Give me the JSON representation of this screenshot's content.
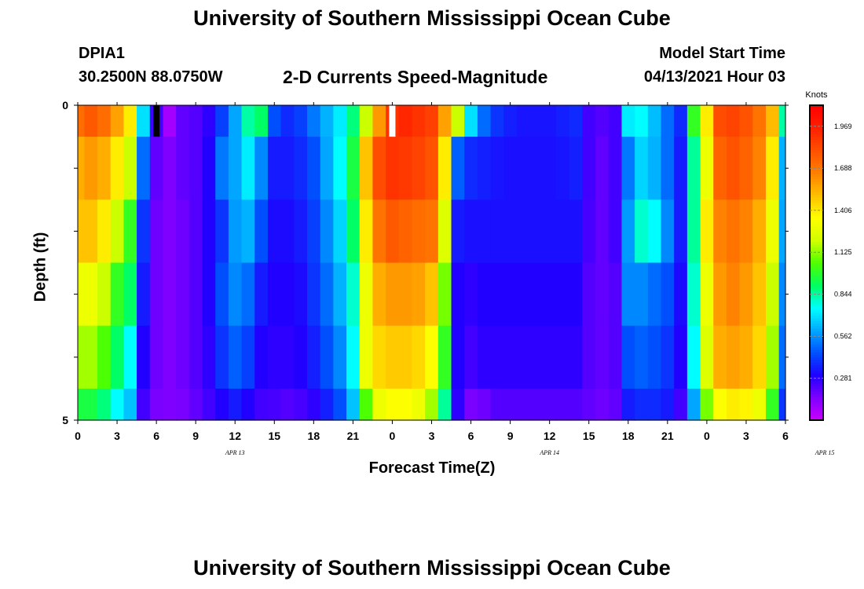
{
  "header": {
    "title": "University of Southern Mississippi Ocean Cube",
    "station": "DPIA1",
    "coords": "30.2500N  88.0750W",
    "subtitle": "2-D Currents Speed-Magnitude",
    "model_start_label": "Model Start Time",
    "model_start_value": "04/13/2021 Hour 03"
  },
  "footer": {
    "title": "University of Southern Mississippi Ocean Cube"
  },
  "chart_data": {
    "type": "heatmap",
    "title": "2-D Currents Speed-Magnitude",
    "xlabel": "Forecast Time(Z)",
    "ylabel": "Depth (ft)",
    "x_tick_labels": [
      "0",
      "3",
      "6",
      "9",
      "12",
      "15",
      "18",
      "21",
      "0",
      "3",
      "6",
      "9",
      "12",
      "15",
      "18",
      "21",
      "0",
      "3",
      "6"
    ],
    "date_labels": [
      {
        "label": "APR  13",
        "hour": 12
      },
      {
        "label": "APR  14",
        "hour": 36
      },
      {
        "label": "APR  15",
        "hour": 57
      }
    ],
    "x_range_hours": [
      0,
      54
    ],
    "y_range_ft": [
      0,
      5
    ],
    "y_tick_labels": [
      "0",
      "5"
    ],
    "depth_layers_ft": [
      0,
      1,
      2,
      3,
      4,
      5
    ],
    "hours": [
      0,
      1,
      2,
      3,
      4,
      5,
      6,
      7,
      8,
      9,
      10,
      11,
      12,
      13,
      14,
      15,
      16,
      17,
      18,
      19,
      20,
      21,
      22,
      23,
      24,
      25,
      26,
      27,
      28,
      29,
      30,
      31,
      32,
      33,
      34,
      35,
      36,
      37,
      38,
      39,
      40,
      41,
      42,
      43,
      44,
      45,
      46,
      47,
      48,
      49,
      50,
      51,
      52,
      53,
      54
    ],
    "values": [
      [
        1.72,
        1.78,
        1.72,
        1.58,
        1.4,
        0.7,
        0.25,
        0.08,
        0.2,
        0.22,
        0.28,
        0.42,
        0.6,
        0.84,
        0.9,
        0.45,
        0.38,
        0.42,
        0.52,
        0.62,
        0.72,
        0.88,
        1.2,
        1.6,
        1.9,
        1.94,
        1.9,
        1.86,
        1.58,
        1.2,
        0.7,
        0.5,
        0.4,
        0.36,
        0.34,
        0.34,
        0.34,
        0.36,
        0.38,
        0.25,
        0.22,
        0.25,
        0.72,
        0.75,
        0.64,
        0.5,
        0.38,
        1.0,
        1.4,
        1.82,
        1.85,
        1.8,
        1.7,
        1.52,
        0.84
      ],
      [
        1.55,
        1.6,
        1.55,
        1.4,
        1.2,
        0.5,
        0.2,
        0.15,
        0.2,
        0.22,
        0.3,
        0.52,
        0.6,
        0.72,
        0.55,
        0.35,
        0.35,
        0.38,
        0.45,
        0.6,
        0.75,
        0.95,
        1.5,
        1.82,
        1.9,
        1.88,
        1.85,
        1.8,
        1.4,
        0.48,
        0.38,
        0.36,
        0.34,
        0.33,
        0.33,
        0.33,
        0.33,
        0.34,
        0.36,
        0.25,
        0.2,
        0.25,
        0.52,
        0.68,
        0.62,
        0.5,
        0.35,
        0.85,
        1.3,
        1.75,
        1.8,
        1.75,
        1.65,
        1.4,
        0.62
      ],
      [
        1.5,
        1.5,
        1.4,
        1.2,
        1.0,
        0.4,
        0.18,
        0.15,
        0.18,
        0.22,
        0.3,
        0.4,
        0.58,
        0.62,
        0.45,
        0.32,
        0.32,
        0.35,
        0.42,
        0.55,
        0.68,
        0.9,
        1.4,
        1.7,
        1.78,
        1.75,
        1.72,
        1.7,
        1.25,
        0.35,
        0.33,
        0.33,
        0.33,
        0.33,
        0.33,
        0.33,
        0.33,
        0.33,
        0.33,
        0.24,
        0.2,
        0.25,
        0.58,
        0.8,
        0.75,
        0.55,
        0.35,
        0.85,
        1.4,
        1.65,
        1.7,
        1.65,
        1.55,
        1.3,
        0.6
      ],
      [
        1.3,
        1.3,
        1.2,
        1.0,
        0.9,
        0.35,
        0.18,
        0.15,
        0.18,
        0.22,
        0.3,
        0.45,
        0.55,
        0.5,
        0.35,
        0.3,
        0.3,
        0.32,
        0.4,
        0.5,
        0.62,
        0.8,
        1.3,
        1.55,
        1.6,
        1.6,
        1.58,
        1.5,
        1.1,
        0.3,
        0.28,
        0.3,
        0.3,
        0.3,
        0.3,
        0.3,
        0.3,
        0.3,
        0.3,
        0.22,
        0.2,
        0.22,
        0.55,
        0.55,
        0.5,
        0.45,
        0.32,
        0.8,
        1.3,
        1.6,
        1.65,
        1.6,
        1.5,
        1.2,
        0.55
      ],
      [
        1.15,
        1.15,
        1.05,
        0.9,
        0.75,
        0.3,
        0.18,
        0.15,
        0.18,
        0.22,
        0.28,
        0.4,
        0.48,
        0.42,
        0.3,
        0.28,
        0.28,
        0.3,
        0.36,
        0.45,
        0.55,
        0.75,
        1.3,
        1.45,
        1.48,
        1.48,
        1.45,
        1.35,
        1.0,
        0.3,
        0.25,
        0.28,
        0.28,
        0.28,
        0.28,
        0.28,
        0.28,
        0.28,
        0.28,
        0.22,
        0.2,
        0.22,
        0.45,
        0.48,
        0.45,
        0.4,
        0.3,
        0.75,
        1.25,
        1.55,
        1.58,
        1.55,
        1.45,
        1.15,
        0.5
      ],
      [
        0.95,
        0.95,
        0.88,
        0.75,
        0.65,
        0.25,
        0.16,
        0.15,
        0.16,
        0.2,
        0.25,
        0.3,
        0.35,
        0.3,
        0.25,
        0.24,
        0.22,
        0.24,
        0.28,
        0.36,
        0.45,
        0.65,
        1.05,
        1.3,
        1.35,
        1.35,
        1.3,
        1.15,
        0.85,
        0.28,
        0.16,
        0.18,
        0.22,
        0.22,
        0.22,
        0.22,
        0.22,
        0.22,
        0.22,
        0.2,
        0.18,
        0.2,
        0.35,
        0.38,
        0.38,
        0.35,
        0.25,
        0.6,
        1.1,
        1.35,
        1.4,
        1.38,
        1.3,
        1.0,
        0.4
      ]
    ],
    "markers": [
      {
        "hour": 6,
        "layer": 0,
        "color": "#000000",
        "label": "model start"
      },
      {
        "hour": 24,
        "layer": 0,
        "color": "#ffffff",
        "label": "now"
      }
    ],
    "colorbar": {
      "unit": "Knots",
      "range": [
        0,
        2.11
      ],
      "tick_labels": [
        "1.969",
        "1.688",
        "1.406",
        "1.125",
        "0.844",
        "0.562",
        "0.281"
      ],
      "tick_values": [
        1.969,
        1.688,
        1.406,
        1.125,
        0.844,
        0.562,
        0.281
      ],
      "colors": [
        "#cc00ff",
        "#8000ff",
        "#2000ff",
        "#0050ff",
        "#00a8ff",
        "#00ffff",
        "#00ff60",
        "#50ff00",
        "#d0ff00",
        "#ffff00",
        "#ffc000",
        "#ff8000",
        "#ff5000",
        "#ff2000",
        "#ff0000"
      ]
    },
    "grid": false,
    "legend": "right"
  }
}
